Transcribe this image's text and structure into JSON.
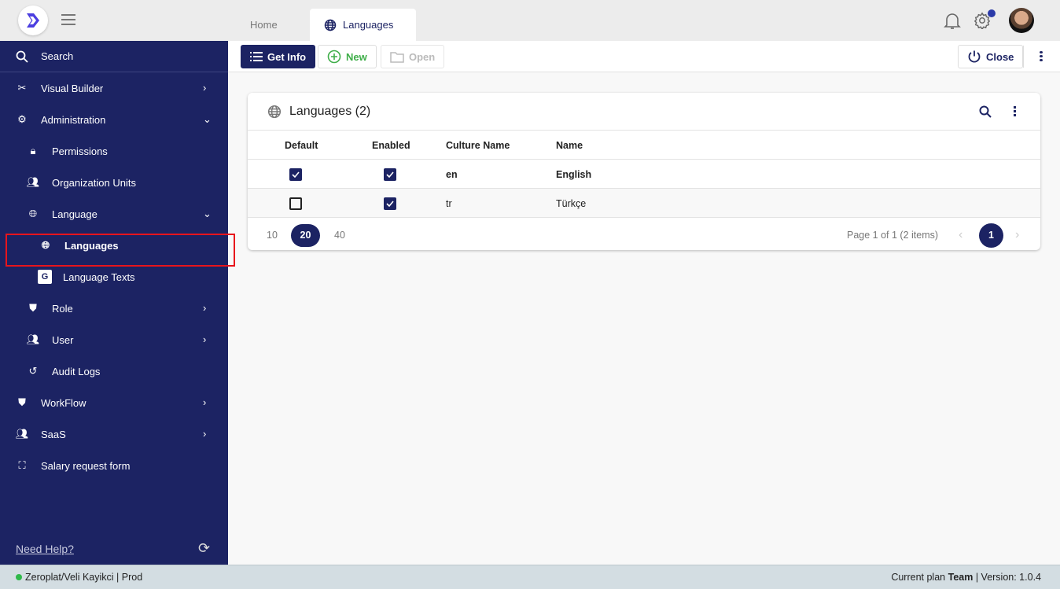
{
  "tabs": [
    {
      "label": "Home"
    },
    {
      "label": "Languages"
    }
  ],
  "header": {
    "notification_icon": "bell-icon",
    "settings_icon": "gear-icon",
    "settings_badge_color": "#2b3aa8"
  },
  "toolbar": {
    "get_info": "Get Info",
    "new": "New",
    "open": "Open",
    "close": "Close"
  },
  "sidebar": {
    "search": "Search",
    "items": [
      {
        "label": "Visual Builder",
        "icon": "tools-icon"
      },
      {
        "label": "Administration",
        "icon": "gear-icon"
      },
      {
        "label": "Permissions",
        "icon": "lock-icon"
      },
      {
        "label": "Organization Units",
        "icon": "people-icon"
      },
      {
        "label": "Language",
        "icon": "globe-icon"
      },
      {
        "label": "Languages",
        "icon": "globe-icon"
      },
      {
        "label": "Language Texts",
        "icon": "translate-icon"
      },
      {
        "label": "Role",
        "icon": "shield-user-icon"
      },
      {
        "label": "User",
        "icon": "people-icon"
      },
      {
        "label": "Audit Logs",
        "icon": "history-icon"
      },
      {
        "label": "WorkFlow",
        "icon": "shield-user-icon"
      },
      {
        "label": "SaaS",
        "icon": "people-icon"
      },
      {
        "label": "Salary request form",
        "icon": "form-icon"
      }
    ],
    "help": "Need Help?"
  },
  "card": {
    "title": "Languages (2)",
    "columns": [
      "Default",
      "Enabled",
      "Culture Name",
      "Name"
    ],
    "rows": [
      {
        "default": true,
        "enabled": true,
        "culture": "en",
        "name": "English"
      },
      {
        "default": false,
        "enabled": true,
        "culture": "tr",
        "name": "Türkçe"
      }
    ],
    "page_sizes": [
      "10",
      "20",
      "40"
    ],
    "selected_page_size": "20",
    "page_info": "Page 1 of 1 (2 items)",
    "current_page": "1"
  },
  "footer": {
    "left": "Zeroplat/Veli Kayikci | Prod",
    "plan_prefix": "Current plan",
    "plan": "Team",
    "version": "| Version: 1.0.4"
  },
  "colors": {
    "primary": "#1c2363",
    "highlight": "#e8141c",
    "new_button": "#3fae49"
  }
}
